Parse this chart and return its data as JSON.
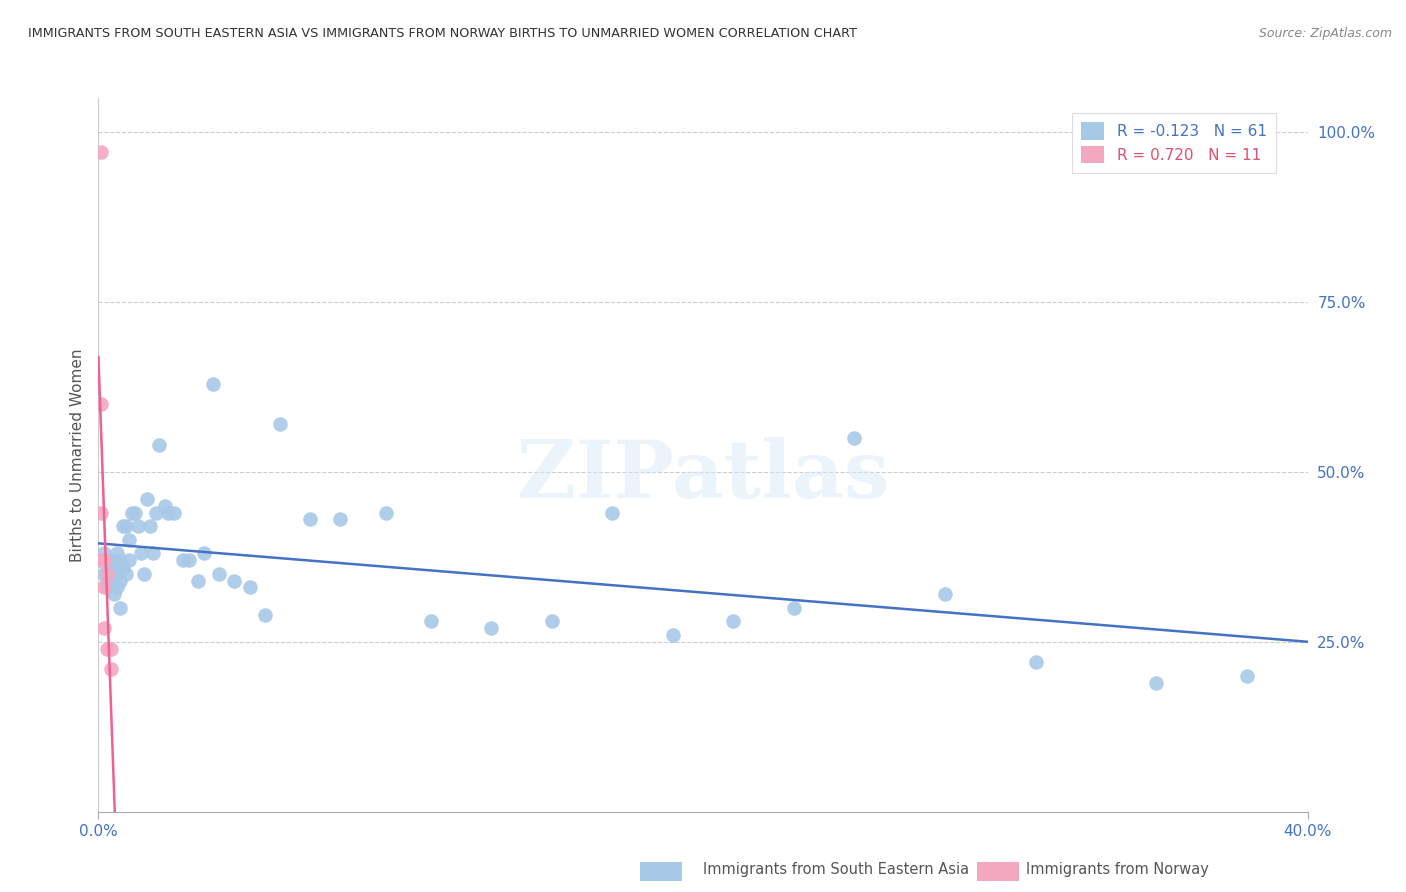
{
  "title": "IMMIGRANTS FROM SOUTH EASTERN ASIA VS IMMIGRANTS FROM NORWAY BIRTHS TO UNMARRIED WOMEN CORRELATION CHART",
  "source": "Source: ZipAtlas.com",
  "ylabel": "Births to Unmarried Women",
  "ylabel_right_ticks": [
    "100.0%",
    "75.0%",
    "50.0%",
    "25.0%"
  ],
  "ylabel_right_vals": [
    1.0,
    0.75,
    0.5,
    0.25
  ],
  "series1_label": "Immigrants from South Eastern Asia",
  "series2_label": "Immigrants from Norway",
  "series1_R": -0.123,
  "series1_N": 61,
  "series2_R": 0.72,
  "series2_N": 11,
  "series1_color": "#a8c8e8",
  "series2_color": "#f4a8c0",
  "trendline1_color": "#4472c4",
  "trendline2_color": "#f06090",
  "watermark": "ZIPatlas",
  "xlim": [
    0.0,
    0.4
  ],
  "ylim": [
    0.0,
    1.05
  ],
  "series1_x": [
    0.001,
    0.002,
    0.002,
    0.003,
    0.003,
    0.003,
    0.004,
    0.004,
    0.005,
    0.005,
    0.005,
    0.006,
    0.006,
    0.006,
    0.007,
    0.007,
    0.007,
    0.008,
    0.008,
    0.009,
    0.009,
    0.01,
    0.01,
    0.011,
    0.012,
    0.013,
    0.014,
    0.015,
    0.016,
    0.017,
    0.018,
    0.019,
    0.02,
    0.022,
    0.023,
    0.025,
    0.028,
    0.03,
    0.033,
    0.035,
    0.038,
    0.04,
    0.045,
    0.05,
    0.055,
    0.06,
    0.07,
    0.08,
    0.095,
    0.11,
    0.13,
    0.15,
    0.17,
    0.19,
    0.21,
    0.23,
    0.25,
    0.28,
    0.31,
    0.35,
    0.38
  ],
  "series1_y": [
    0.37,
    0.35,
    0.38,
    0.36,
    0.34,
    0.33,
    0.37,
    0.35,
    0.36,
    0.34,
    0.32,
    0.35,
    0.33,
    0.38,
    0.37,
    0.34,
    0.3,
    0.42,
    0.36,
    0.35,
    0.42,
    0.4,
    0.37,
    0.44,
    0.44,
    0.42,
    0.38,
    0.35,
    0.46,
    0.42,
    0.38,
    0.44,
    0.54,
    0.45,
    0.44,
    0.44,
    0.37,
    0.37,
    0.34,
    0.38,
    0.63,
    0.35,
    0.34,
    0.33,
    0.29,
    0.57,
    0.43,
    0.43,
    0.44,
    0.28,
    0.27,
    0.28,
    0.44,
    0.26,
    0.28,
    0.3,
    0.55,
    0.32,
    0.22,
    0.19,
    0.2
  ],
  "series2_x": [
    0.001,
    0.001,
    0.001,
    0.001,
    0.002,
    0.002,
    0.002,
    0.003,
    0.003,
    0.004,
    0.004
  ],
  "series2_y": [
    0.97,
    0.6,
    0.44,
    0.37,
    0.37,
    0.33,
    0.27,
    0.35,
    0.24,
    0.24,
    0.21
  ],
  "trendline2_xmin": 0.0,
  "trendline2_xmax": 0.006,
  "xtick_positions": [
    0.0,
    0.4
  ],
  "xtick_labels": [
    "0.0%",
    "40.0%"
  ]
}
